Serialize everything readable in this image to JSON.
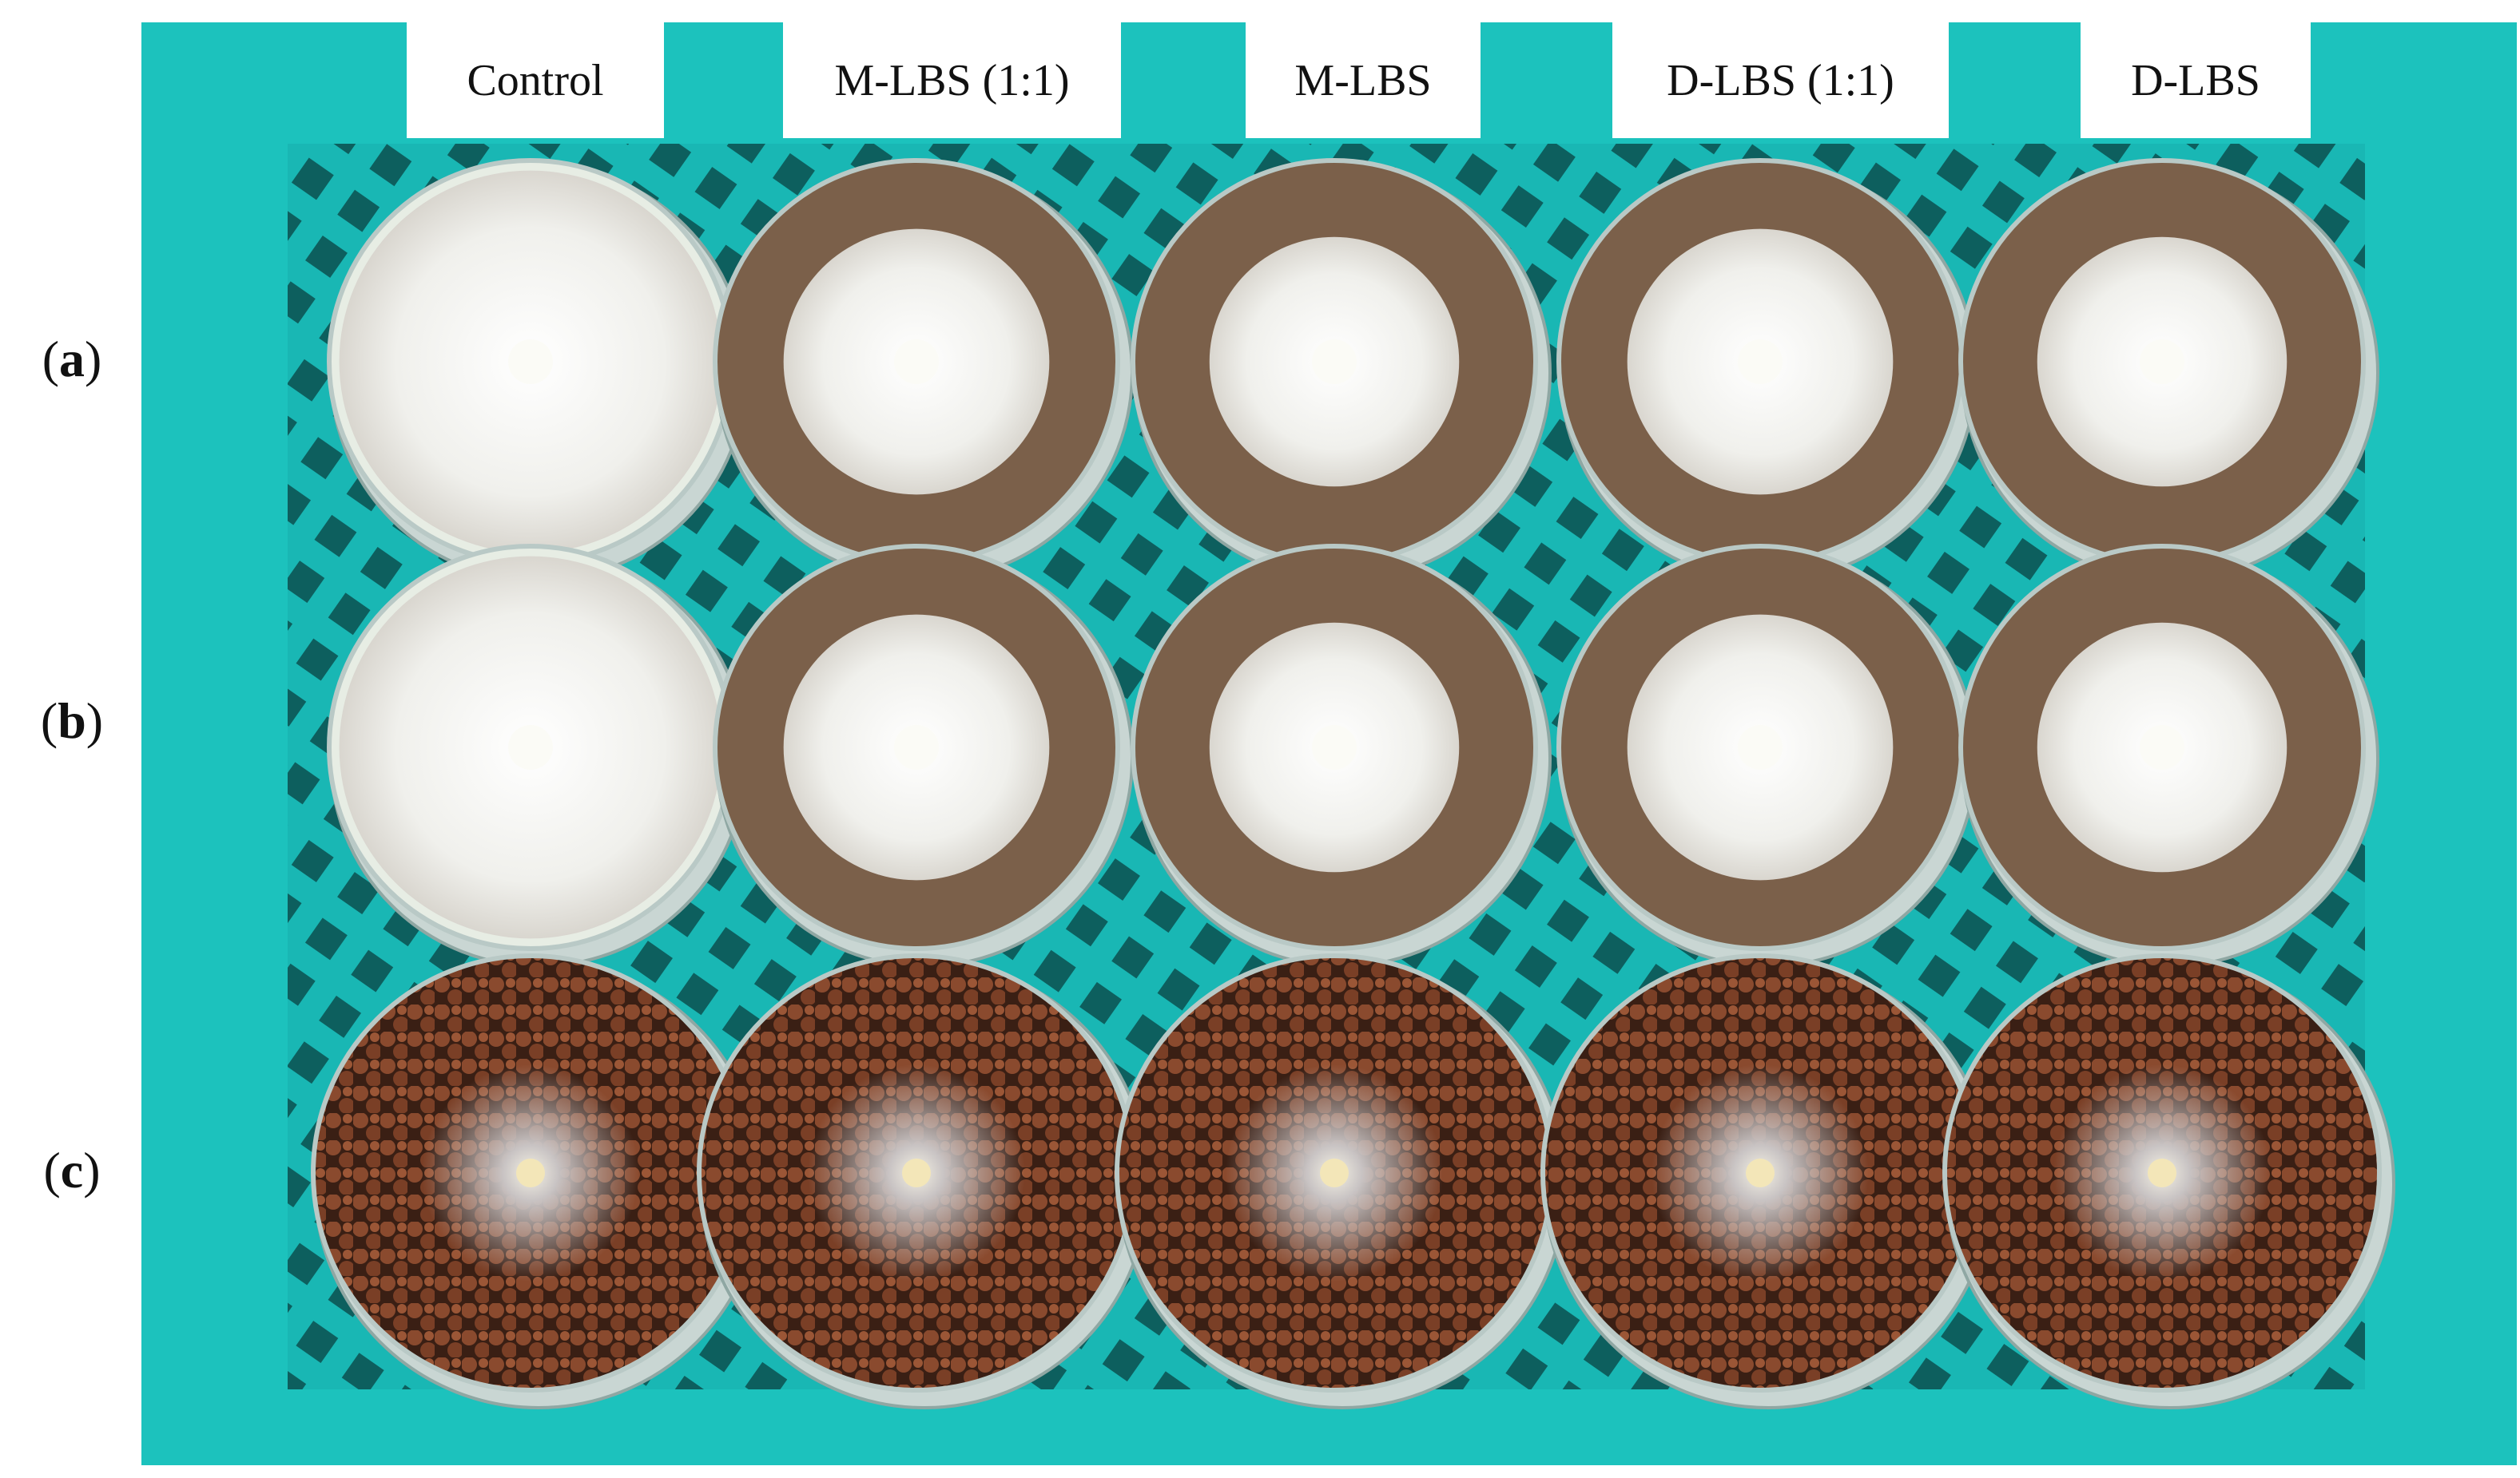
{
  "column_labels": [
    "Control",
    "M-LBS (1:1)",
    "M-LBS",
    "D-LBS (1:1)",
    "D-LBS"
  ],
  "row_labels": [
    {
      "prefix": "(",
      "letter": "a",
      "suffix": ")"
    },
    {
      "prefix": "(",
      "letter": "b",
      "suffix": ")"
    },
    {
      "prefix": "(",
      "letter": "c",
      "suffix": ")"
    }
  ]
}
